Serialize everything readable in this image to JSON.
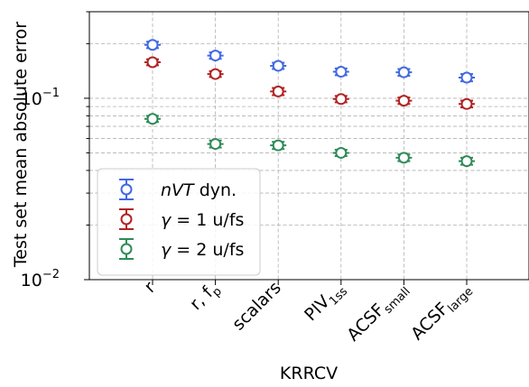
{
  "chart_data": {
    "type": "scatter",
    "xlabel": "KRRCV",
    "ylabel": "Test set mean absolute error",
    "yscale": "log",
    "ylim": [
      0.01,
      0.3
    ],
    "grid": true,
    "legend_position": "lower-left",
    "y_major_ticks": [
      {
        "value": 0.01,
        "label": "10",
        "exp": "−2"
      },
      {
        "value": 0.1,
        "label": "10",
        "exp": "−1"
      }
    ],
    "categories": [
      {
        "base": "r",
        "sub": ""
      },
      {
        "base": "r, f",
        "sub": "p"
      },
      {
        "base": "scalars",
        "sub": ""
      },
      {
        "base": "PIV",
        "sub": "1ss"
      },
      {
        "base": "ACSF",
        "sub": "small"
      },
      {
        "base": "ACSF",
        "sub": "large"
      }
    ],
    "series": [
      {
        "name_italic": "nVT",
        "name_rest": " dyn.",
        "color": "#4169e1",
        "values": [
          0.197,
          0.172,
          0.151,
          0.14,
          0.139,
          0.13
        ],
        "errors": [
          0.008,
          0.007,
          0.006,
          0.006,
          0.006,
          0.006
        ]
      },
      {
        "name_italic": "γ",
        "name_rest": " = 1 u/fs",
        "color": "#b22222",
        "values": [
          0.158,
          0.136,
          0.109,
          0.099,
          0.097,
          0.093
        ],
        "errors": [
          0.006,
          0.005,
          0.005,
          0.004,
          0.004,
          0.004
        ]
      },
      {
        "name_italic": "γ",
        "name_rest": " = 2 u/fs",
        "color": "#2e8b57",
        "values": [
          0.077,
          0.056,
          0.055,
          0.05,
          0.047,
          0.045
        ],
        "errors": [
          0.003,
          0.0025,
          0.0025,
          0.002,
          0.002,
          0.002
        ]
      }
    ]
  }
}
